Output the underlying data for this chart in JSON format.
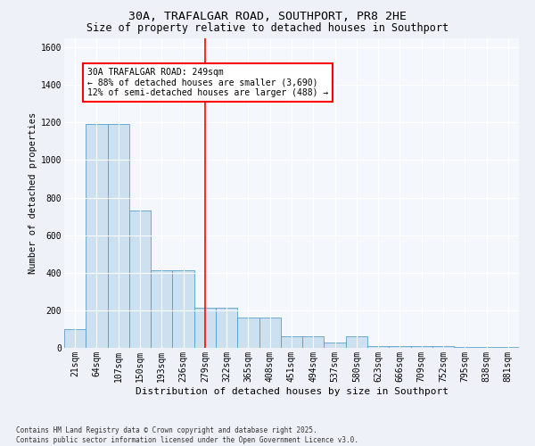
{
  "title1": "30A, TRAFALGAR ROAD, SOUTHPORT, PR8 2HE",
  "title2": "Size of property relative to detached houses in Southport",
  "xlabel": "Distribution of detached houses by size in Southport",
  "ylabel": "Number of detached properties",
  "categories": [
    "21sqm",
    "64sqm",
    "107sqm",
    "150sqm",
    "193sqm",
    "236sqm",
    "279sqm",
    "322sqm",
    "365sqm",
    "408sqm",
    "451sqm",
    "494sqm",
    "537sqm",
    "580sqm",
    "623sqm",
    "666sqm",
    "709sqm",
    "752sqm",
    "795sqm",
    "838sqm",
    "881sqm"
  ],
  "values": [
    100,
    1190,
    1190,
    730,
    415,
    415,
    215,
    215,
    160,
    160,
    60,
    60,
    30,
    60,
    10,
    10,
    10,
    10,
    5,
    5,
    5
  ],
  "bar_color": "#cce0f0",
  "bar_edge_color": "#5a9ec9",
  "red_line_x": 6.0,
  "annotation_text": "30A TRAFALGAR ROAD: 249sqm\n← 88% of detached houses are smaller (3,690)\n12% of semi-detached houses are larger (488) →",
  "annotation_box_color": "white",
  "annotation_box_edge": "red",
  "ylim": [
    0,
    1650
  ],
  "yticks": [
    0,
    200,
    400,
    600,
    800,
    1000,
    1200,
    1400,
    1600
  ],
  "footer1": "Contains HM Land Registry data © Crown copyright and database right 2025.",
  "footer2": "Contains public sector information licensed under the Open Government Licence v3.0.",
  "bg_color": "#eef2f8",
  "plot_bg_color": "#f4f7fc",
  "grid_color": "#ffffff",
  "title1_fontsize": 9.5,
  "title2_fontsize": 8.5,
  "xlabel_fontsize": 8.0,
  "ylabel_fontsize": 7.5,
  "tick_fontsize": 7.0,
  "annot_fontsize": 7.0,
  "footer_fontsize": 5.5
}
